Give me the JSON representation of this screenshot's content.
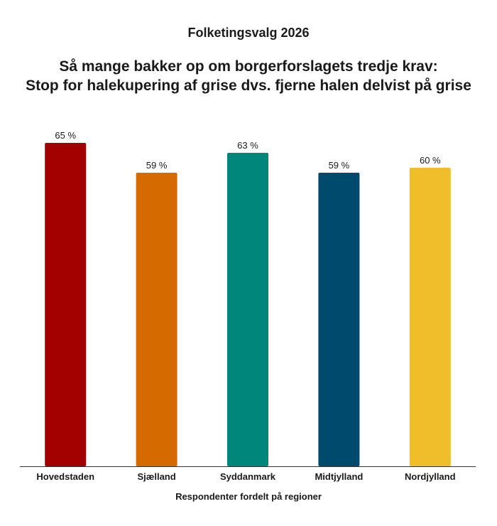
{
  "header": {
    "supertitle": "Folketingsvalg 2026",
    "title_line1": "Så mange bakker op om borgerforslagets tredje krav:",
    "title_line2": "Stop for halekupering af grise dvs. fjerne halen delvist på grise"
  },
  "chart_data": {
    "type": "bar",
    "categories": [
      "Hovedstaden",
      "Sjælland",
      "Syddanmark",
      "Midtjylland",
      "Nordjylland"
    ],
    "values": [
      65,
      59,
      63,
      59,
      60
    ],
    "value_labels": [
      "65 %",
      "59 %",
      "63 %",
      "59 %",
      "60 %"
    ],
    "colors": [
      "#a30000",
      "#d46a00",
      "#00867a",
      "#004a6e",
      "#f0be2a"
    ],
    "xlabel": "Respondenter fordelt på regioner",
    "ylabel": "",
    "ylim": [
      0,
      70
    ],
    "grid": false,
    "legend": "none"
  }
}
